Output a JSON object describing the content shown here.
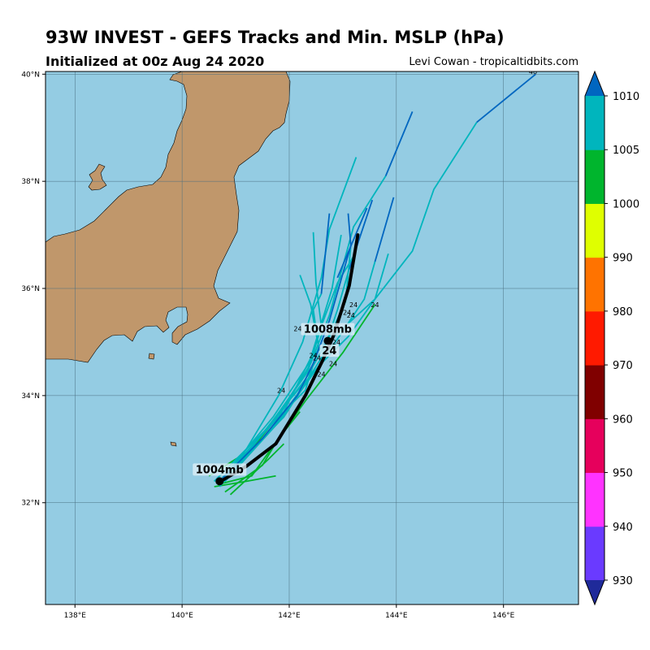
{
  "header": {
    "title": "93W INVEST - GEFS Tracks and Min. MSLP (hPa)",
    "subtitle": "Initialized at 00z Aug 24 2020",
    "credit": "Levi Cowan - tropicaltidbits.com"
  },
  "chart_data": {
    "type": "map-tracks",
    "title": "93W INVEST - GEFS Tracks and Min. MSLP (hPa)",
    "lon_range": [
      137.45,
      147.4
    ],
    "lat_range": [
      30.1,
      40.05
    ],
    "lon_ticks": [
      138,
      140,
      142,
      144,
      146
    ],
    "lat_ticks": [
      32,
      34,
      36,
      38,
      40
    ],
    "lon_tick_labels": [
      "138°E",
      "140°E",
      "142°E",
      "144°E",
      "146°E"
    ],
    "lat_tick_labels": [
      "32°N",
      "34°N",
      "36°N",
      "38°N",
      "40°N"
    ],
    "grid": true,
    "colors": {
      "ocean": "#94cce3",
      "land": "#c0976b",
      "mean_track": "#000000"
    },
    "colorbar": {
      "levels": [
        930,
        940,
        950,
        960,
        970,
        980,
        990,
        1000,
        1005,
        1010
      ],
      "labels": [
        "930",
        "940",
        "950",
        "960",
        "970",
        "980",
        "990",
        "1000",
        "1005",
        "1010"
      ],
      "colors": [
        "#6a3aff",
        "#ff33ff",
        "#e6005c",
        "#800000",
        "#ff1a00",
        "#ff7300",
        "#dfff00",
        "#00b52d",
        "#00b5bd"
      ],
      "under_color": "#1f2a9a",
      "over_color": "#0066c0"
    },
    "mean_track": [
      [
        140.67,
        32.37
      ],
      [
        141.2,
        32.68
      ],
      [
        141.75,
        33.1
      ],
      [
        142.3,
        34.0
      ],
      [
        142.62,
        34.65
      ],
      [
        142.82,
        35.1
      ],
      [
        142.98,
        35.6
      ],
      [
        143.12,
        36.05
      ],
      [
        143.28,
        37.0
      ]
    ],
    "mean_points": [
      {
        "lon": 140.7,
        "lat": 32.4,
        "label": "1004mb"
      },
      {
        "lon": 142.72,
        "lat": 35.02,
        "label": "1008mb"
      }
    ],
    "mean_hour_label": {
      "lon": 142.75,
      "lat": 34.8,
      "text": "24"
    },
    "members": [
      {
        "color": "#00b52d",
        "points": [
          [
            140.7,
            32.35
          ],
          [
            141.3,
            32.5
          ],
          [
            142.3,
            33.9
          ],
          [
            143.0,
            34.8
          ],
          [
            143.6,
            35.7
          ]
        ]
      },
      {
        "color": "#00b52d",
        "points": [
          [
            140.8,
            32.2
          ],
          [
            141.5,
            32.7
          ],
          [
            141.8,
            33.2
          ],
          [
            142.2,
            33.7
          ]
        ]
      },
      {
        "color": "#00b52d",
        "points": [
          [
            140.6,
            32.3
          ],
          [
            141.2,
            32.4
          ],
          [
            141.75,
            32.5
          ]
        ]
      },
      {
        "color": "#00b52d",
        "points": [
          [
            140.5,
            32.5
          ],
          [
            141.3,
            33.0
          ],
          [
            141.7,
            33.5
          ]
        ]
      },
      {
        "color": "#00b52d",
        "points": [
          [
            140.9,
            32.15
          ],
          [
            141.6,
            32.8
          ],
          [
            141.9,
            33.1
          ]
        ]
      },
      {
        "color": "#00b5bd",
        "points": [
          [
            140.7,
            32.4
          ],
          [
            141.7,
            33.6
          ],
          [
            142.5,
            34.8
          ],
          [
            143.6,
            35.8
          ],
          [
            144.3,
            36.7
          ],
          [
            144.7,
            37.85
          ],
          [
            145.5,
            39.1
          ]
        ]
      },
      {
        "color": "#0066c0",
        "points": [
          [
            145.5,
            39.1
          ],
          [
            146.6,
            40.0
          ]
        ],
        "label": {
          "lon": 146.55,
          "lat": 40.05,
          "text": "48"
        }
      },
      {
        "color": "#00b5bd",
        "points": [
          [
            140.8,
            32.5
          ],
          [
            141.8,
            33.6
          ],
          [
            142.4,
            34.6
          ],
          [
            142.75,
            35.5
          ],
          [
            143.2,
            37.15
          ],
          [
            143.8,
            38.1
          ]
        ]
      },
      {
        "color": "#0066c0",
        "points": [
          [
            143.8,
            38.1
          ],
          [
            144.3,
            39.3
          ]
        ]
      },
      {
        "color": "#00b5bd",
        "points": [
          [
            140.7,
            32.3
          ],
          [
            141.6,
            33.4
          ],
          [
            142.35,
            34.45
          ],
          [
            142.6,
            35.3
          ],
          [
            142.5,
            36.1
          ],
          [
            142.45,
            37.05
          ]
        ]
      },
      {
        "color": "#00b5bd",
        "points": [
          [
            140.8,
            32.4
          ],
          [
            141.8,
            33.5
          ],
          [
            142.4,
            34.7
          ],
          [
            142.8,
            36.0
          ],
          [
            142.97,
            37.0
          ]
        ]
      },
      {
        "color": "#00b5bd",
        "points": [
          [
            140.8,
            32.4
          ],
          [
            141.9,
            33.8
          ],
          [
            142.6,
            34.6
          ],
          [
            143.1,
            35.1
          ],
          [
            143.6,
            35.8
          ],
          [
            143.85,
            36.65
          ]
        ]
      },
      {
        "color": "#00b5bd",
        "points": [
          [
            140.6,
            32.4
          ],
          [
            141.5,
            33.3
          ],
          [
            142.3,
            34.1
          ],
          [
            142.55,
            34.9
          ],
          [
            142.4,
            35.7
          ],
          [
            142.2,
            36.25
          ]
        ]
      },
      {
        "color": "#00b5bd",
        "points": [
          [
            140.7,
            32.35
          ],
          [
            141.2,
            33.0
          ],
          [
            141.8,
            34.0
          ],
          [
            142.25,
            35.0
          ],
          [
            142.6,
            36.2
          ],
          [
            142.75,
            37.1
          ],
          [
            143.25,
            38.45
          ]
        ]
      },
      {
        "color": "#00b5bd",
        "points": [
          [
            140.8,
            32.4
          ],
          [
            141.7,
            33.4
          ],
          [
            142.35,
            34.3
          ],
          [
            142.55,
            34.9
          ],
          [
            142.45,
            35.6
          ],
          [
            142.6,
            35.9
          ]
        ]
      },
      {
        "color": "#0066c0",
        "points": [
          [
            142.6,
            35.9
          ],
          [
            142.75,
            37.4
          ]
        ]
      },
      {
        "color": "#00b5bd",
        "points": [
          [
            140.7,
            32.4
          ],
          [
            141.9,
            33.6
          ],
          [
            142.6,
            34.7
          ],
          [
            142.9,
            35.6
          ],
          [
            143.1,
            36.3
          ]
        ]
      },
      {
        "color": "#0066c0",
        "points": [
          [
            143.1,
            36.3
          ],
          [
            143.55,
            37.65
          ]
        ]
      },
      {
        "color": "#00b5bd",
        "points": [
          [
            140.7,
            32.35
          ],
          [
            141.8,
            33.5
          ],
          [
            142.55,
            34.55
          ],
          [
            143.0,
            35.2
          ],
          [
            143.4,
            35.8
          ],
          [
            143.6,
            36.5
          ]
        ]
      },
      {
        "color": "#0066c0",
        "points": [
          [
            143.6,
            36.5
          ],
          [
            143.95,
            37.7
          ]
        ]
      },
      {
        "color": "#00b5bd",
        "points": [
          [
            140.6,
            32.4
          ],
          [
            141.6,
            33.4
          ],
          [
            142.3,
            34.3
          ],
          [
            142.7,
            35.0
          ],
          [
            143.05,
            35.75
          ],
          [
            143.15,
            36.8
          ]
        ]
      },
      {
        "color": "#0066c0",
        "points": [
          [
            143.15,
            36.8
          ],
          [
            143.1,
            37.4
          ]
        ]
      },
      {
        "color": "#00b5bd",
        "points": [
          [
            140.7,
            32.4
          ],
          [
            141.7,
            33.5
          ],
          [
            142.35,
            34.5
          ],
          [
            142.6,
            35.3
          ],
          [
            142.9,
            36.1
          ],
          [
            143.2,
            36.6
          ]
        ]
      },
      {
        "color": "#0066c0",
        "points": [
          [
            142.9,
            36.2
          ],
          [
            143.45,
            37.5
          ]
        ]
      },
      {
        "color": "#0066c0",
        "points": [
          [
            140.7,
            32.4
          ],
          [
            141.5,
            33.2
          ],
          [
            142.15,
            34.0
          ],
          [
            142.45,
            34.6
          ],
          [
            142.75,
            35.4
          ],
          [
            143.15,
            36.8
          ]
        ]
      }
    ],
    "hour_labels": [
      {
        "lon": 142.16,
        "lat": 35.25,
        "text": "24"
      },
      {
        "lon": 143.2,
        "lat": 35.7,
        "text": "24"
      },
      {
        "lon": 143.08,
        "lat": 35.55,
        "text": "24"
      },
      {
        "lon": 143.15,
        "lat": 35.5,
        "text": "24"
      },
      {
        "lon": 143.6,
        "lat": 35.7,
        "text": "24"
      },
      {
        "lon": 142.45,
        "lat": 34.75,
        "text": "24"
      },
      {
        "lon": 142.52,
        "lat": 34.7,
        "text": "24"
      },
      {
        "lon": 142.82,
        "lat": 34.6,
        "text": "24"
      },
      {
        "lon": 142.6,
        "lat": 34.4,
        "text": "24"
      },
      {
        "lon": 141.85,
        "lat": 34.1,
        "text": "24"
      },
      {
        "lon": 142.88,
        "lat": 35.0,
        "text": "24"
      }
    ]
  }
}
